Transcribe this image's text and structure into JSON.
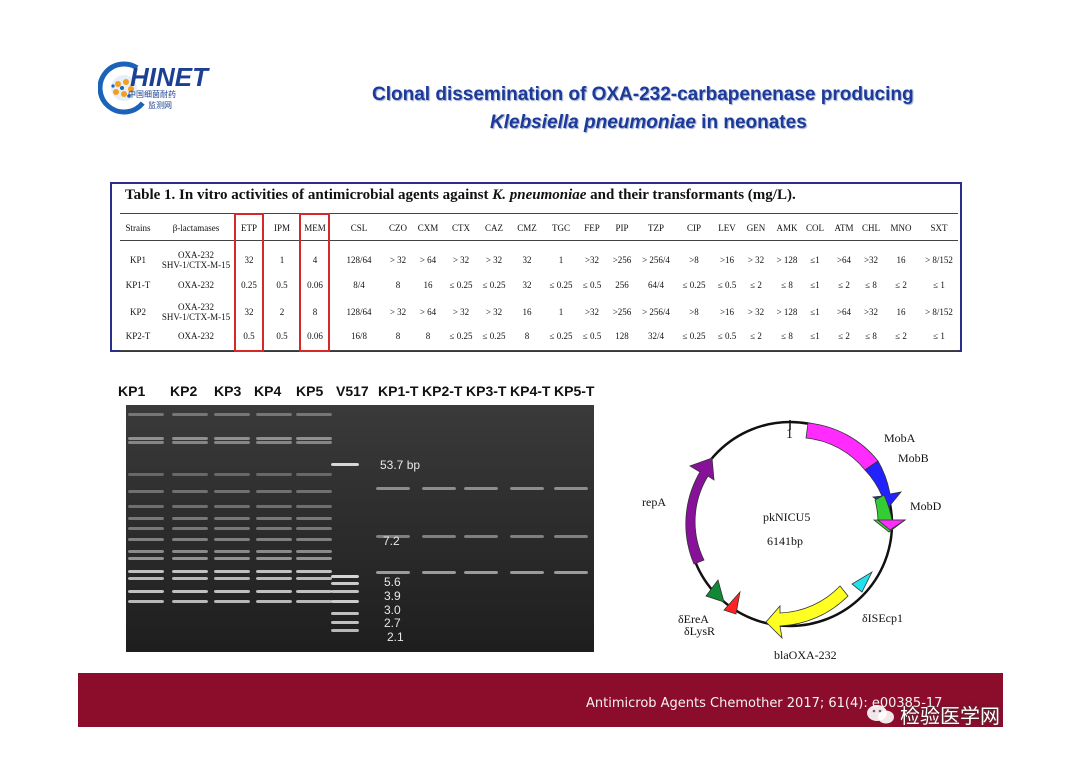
{
  "logo": {
    "name": "HINET",
    "line1": "中国细菌耐药",
    "line2": "监测网"
  },
  "title": {
    "line1": "Clonal dissemination of OXA-232-carbapenenase producing",
    "line2_italic": "Klebsiella pneumoniae",
    "line2_rest": " in neonates"
  },
  "table": {
    "caption_pre": "Table 1. In vitro activities of antimicrobial agents against ",
    "caption_italic": "K. pneumoniae",
    "caption_post": " and their transformants (mg/L).",
    "headers": [
      "Strains",
      "β-lactamases",
      "ETP",
      "IPM",
      "MEM",
      "CSL",
      "CZO",
      "CXM",
      "CTX",
      "CAZ",
      "CMZ",
      "TGC",
      "FEP",
      "PIP",
      "TZP",
      "CIP",
      "LEV",
      "GEN",
      "AMK",
      "COL",
      "ATM",
      "CHL",
      "MNO",
      "SXT"
    ],
    "rows": [
      {
        "strain": "KP1",
        "bl1": "OXA-232",
        "bl2": "SHV-1/CTX-M-15",
        "vals": [
          "32",
          "1",
          "4",
          "128/64",
          "> 32",
          "> 64",
          "> 32",
          "> 32",
          "32",
          "1",
          ">32",
          ">256",
          "> 256/4",
          ">8",
          ">16",
          "> 32",
          "> 128",
          "≤1",
          ">64",
          ">32",
          "16",
          "> 8/152"
        ]
      },
      {
        "strain": "KP1-T",
        "bl1": "OXA-232",
        "bl2": "",
        "vals": [
          "0.25",
          "0.5",
          "0.06",
          "8/4",
          "8",
          "16",
          "≤ 0.25",
          "≤ 0.25",
          "32",
          "≤ 0.25",
          "≤ 0.5",
          "256",
          "64/4",
          "≤ 0.25",
          "≤ 0.5",
          "≤ 2",
          "≤ 8",
          "≤1",
          "≤ 2",
          "≤ 8",
          "≤ 2",
          "≤ 1"
        ]
      },
      {
        "strain": "KP2",
        "bl1": "OXA-232",
        "bl2": "SHV-1/CTX-M-15",
        "vals": [
          "32",
          "2",
          "8",
          "128/64",
          "> 32",
          "> 64",
          "> 32",
          "> 32",
          "16",
          "1",
          ">32",
          ">256",
          "> 256/4",
          ">8",
          ">16",
          "> 32",
          "> 128",
          "≤1",
          ">64",
          ">32",
          "16",
          "> 8/152"
        ]
      },
      {
        "strain": "KP2-T",
        "bl1": "OXA-232",
        "bl2": "",
        "vals": [
          "0.5",
          "0.5",
          "0.06",
          "16/8",
          "8",
          "8",
          "≤ 0.25",
          "≤ 0.25",
          "8",
          "≤ 0.25",
          "≤ 0.5",
          "128",
          "32/4",
          "≤ 0.25",
          "≤ 0.5",
          "≤ 2",
          "≤ 8",
          "≤1",
          "≤ 2",
          "≤ 8",
          "≤ 2",
          "≤ 1"
        ]
      }
    ]
  },
  "gel": {
    "lanes": [
      "KP1",
      "KP2",
      "KP3",
      "KP4",
      "KP5",
      "V517",
      "KP1-T",
      "KP2-T",
      "KP3-T",
      "KP4-T",
      "KP5-T"
    ],
    "markers": [
      "53.7 bp",
      "7.2",
      "5.6",
      "3.9",
      "3.0",
      "2.7",
      "2.1"
    ]
  },
  "plasmid": {
    "name": "pkNICU5",
    "size": "6141bp",
    "origin_mark": "1",
    "features": [
      {
        "label": "MobA",
        "color": "#ff2bff"
      },
      {
        "label": "MobB",
        "color": "#2222ff"
      },
      {
        "label": "MobD",
        "color": "#33cc33"
      },
      {
        "label": "δISEcp1",
        "color": "#22e0ee"
      },
      {
        "label": "blaOXA-232",
        "color": "#ffff22"
      },
      {
        "label": "δLysR",
        "color": "#ff2222"
      },
      {
        "label": "δEreA",
        "color": "#118833"
      },
      {
        "label": "repA",
        "color": "#881199"
      }
    ]
  },
  "footer": {
    "citation": "Antimicrob Agents Chemother 2017; 61(4): e00385-17",
    "watermark": "检验医学网"
  }
}
